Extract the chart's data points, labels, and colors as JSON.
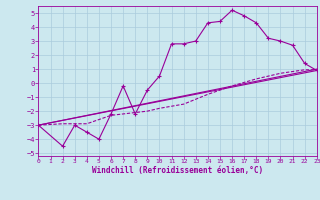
{
  "xlabel": "Windchill (Refroidissement éolien,°C)",
  "bg_color": "#cce8ef",
  "grid_color": "#aaccdd",
  "line_color": "#990099",
  "xlim": [
    0,
    23
  ],
  "ylim": [
    -5.2,
    5.5
  ],
  "xticks": [
    0,
    1,
    2,
    3,
    4,
    5,
    6,
    7,
    8,
    9,
    10,
    11,
    12,
    13,
    14,
    15,
    16,
    17,
    18,
    19,
    20,
    21,
    22,
    23
  ],
  "yticks": [
    -5,
    -4,
    -3,
    -2,
    -1,
    0,
    1,
    2,
    3,
    4,
    5
  ],
  "line1_x": [
    0,
    2,
    3,
    4,
    5,
    6,
    7,
    8,
    9,
    10,
    11,
    12,
    13,
    14,
    15,
    16,
    17,
    18,
    19,
    20,
    21,
    22,
    23
  ],
  "line1_y": [
    -3.0,
    -4.5,
    -3.0,
    -3.5,
    -4.0,
    -2.2,
    -0.2,
    -2.2,
    -0.5,
    0.5,
    2.8,
    2.8,
    3.0,
    4.3,
    4.4,
    5.2,
    4.8,
    4.3,
    3.2,
    3.0,
    2.7,
    1.4,
    0.9
  ],
  "line2_x": [
    0,
    23
  ],
  "line2_y": [
    -3.0,
    1.0
  ],
  "line3_x": [
    0,
    23
  ],
  "line3_y": [
    -3.0,
    0.9
  ],
  "line4_x": [
    0,
    2,
    4,
    6,
    8,
    9,
    10,
    12,
    14,
    16,
    18,
    20,
    22,
    23
  ],
  "line4_y": [
    -3.0,
    -2.9,
    -2.9,
    -2.3,
    -2.1,
    -2.0,
    -1.8,
    -1.5,
    -0.8,
    -0.2,
    0.3,
    0.7,
    0.95,
    0.95
  ]
}
